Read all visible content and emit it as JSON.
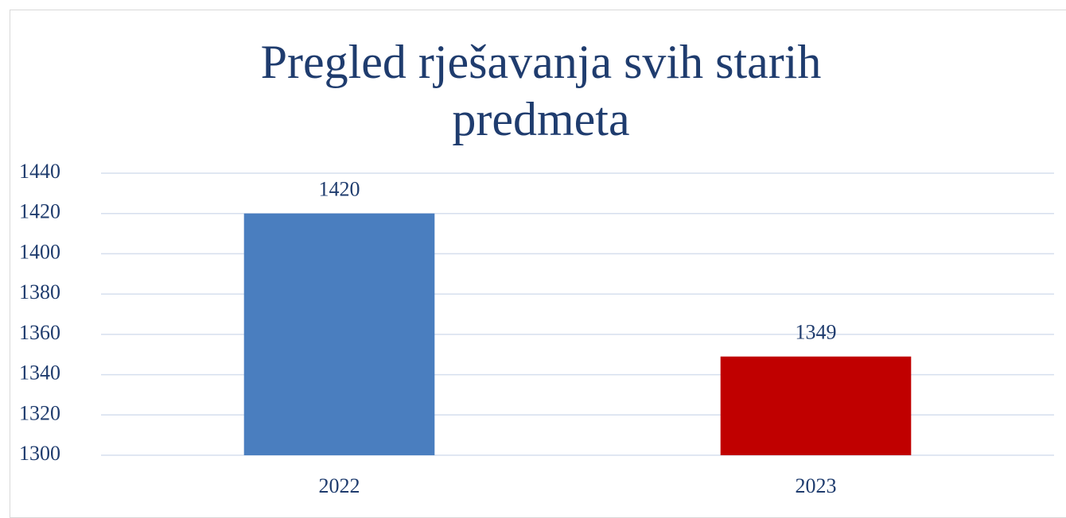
{
  "chart_data": {
    "type": "bar",
    "title": "Pregled rješavanja svih starih predmeta",
    "categories": [
      "2022",
      "2023"
    ],
    "values": [
      1420,
      1349
    ],
    "colors": [
      "#4a7ebf",
      "#c00000"
    ],
    "ylim": [
      1300,
      1440
    ],
    "yticks": [
      1300,
      1320,
      1340,
      1360,
      1380,
      1400,
      1420,
      1440
    ],
    "grid": true
  }
}
